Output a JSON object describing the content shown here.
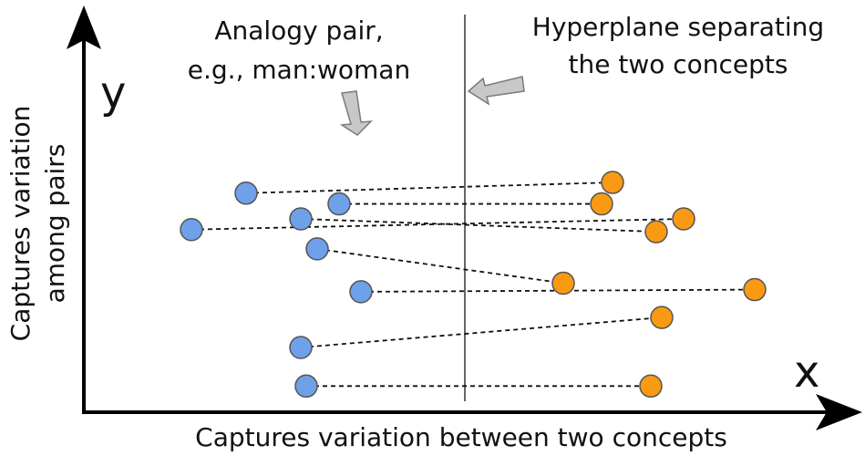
{
  "labels": {
    "y_letter": "y",
    "x_letter": "x",
    "y_caption_line1": "Captures variation",
    "y_caption_line2": "among pairs",
    "x_caption": "Captures variation between two concepts",
    "analogy_line1": "Analogy pair,",
    "analogy_line2": "e.g., man:woman",
    "hyperplane_line1": "Hyperplane separating",
    "hyperplane_line2": "the two concepts"
  },
  "colors": {
    "concept_a": "#6fa0ea",
    "concept_b": "#f99a12",
    "axis": "#000000",
    "hyperplane": "#666666",
    "callout": "#c8c8c8"
  },
  "pairs": [
    {
      "a": [
        -2.0,
        0.6
      ],
      "b": [
        1.35,
        0.85
      ]
    },
    {
      "a": [
        -1.15,
        0.35
      ],
      "b": [
        1.25,
        0.35
      ]
    },
    {
      "a": [
        -2.5,
        -0.25
      ],
      "b": [
        2.0,
        0.0
      ]
    },
    {
      "a": [
        -1.5,
        0.0
      ],
      "b": [
        1.75,
        -0.3
      ]
    },
    {
      "a": [
        -1.35,
        -0.7
      ],
      "b": [
        0.9,
        -1.5
      ]
    },
    {
      "a": [
        -0.95,
        -1.7
      ],
      "b": [
        2.65,
        -1.65
      ]
    },
    {
      "a": [
        -1.5,
        -3.0
      ],
      "b": [
        1.8,
        -2.3
      ]
    },
    {
      "a": [
        -1.45,
        -3.9
      ],
      "b": [
        1.7,
        -3.9
      ]
    }
  ]
}
